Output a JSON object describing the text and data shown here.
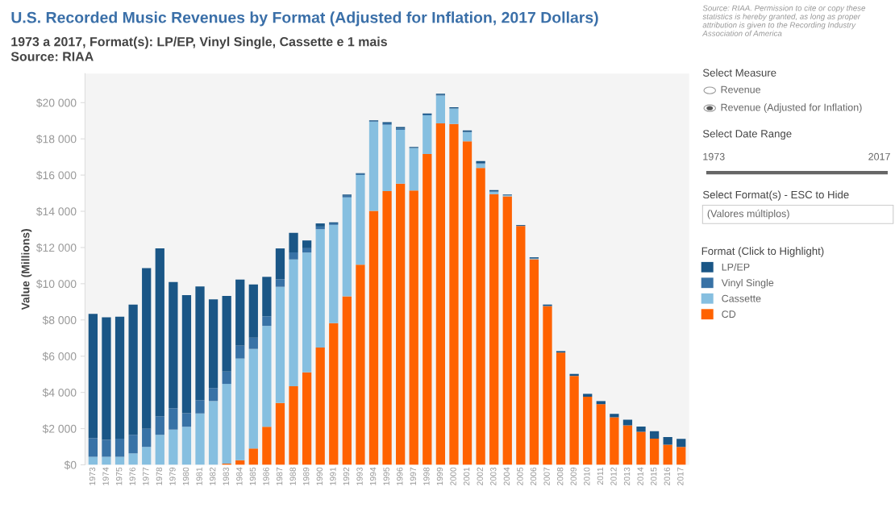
{
  "chart_data": {
    "type": "bar",
    "stacked": true,
    "title": "U.S. Recorded Music Revenues by Format (Adjusted for Inflation, 2017 Dollars)",
    "subtitle": "1973 a 2017, Format(s): LP/EP, Vinyl Single, Cassette e 1 mais\nSource: RIAA",
    "ylabel": "Value (Millions)",
    "legend_title": "Format (Click to Highlight)",
    "legend": "right",
    "grid": false,
    "categories": [
      "1973",
      "1974",
      "1975",
      "1976",
      "1977",
      "1978",
      "1979",
      "1980",
      "1981",
      "1982",
      "1983",
      "1984",
      "1985",
      "1986",
      "1987",
      "1988",
      "1989",
      "1990",
      "1991",
      "1992",
      "1993",
      "1994",
      "1995",
      "1996",
      "1997",
      "1998",
      "1999",
      "2000",
      "2001",
      "2002",
      "2003",
      "2004",
      "2005",
      "2006",
      "2007",
      "2008",
      "2009",
      "2010",
      "2011",
      "2012",
      "2013",
      "2014",
      "2015",
      "2016",
      "2017"
    ],
    "series": [
      {
        "name": "CD",
        "color": "#ff6200",
        "values": [
          0,
          0,
          0,
          0,
          0,
          0,
          0,
          0,
          0,
          0,
          60,
          250,
          900,
          2100,
          3420,
          4340,
          5110,
          6480,
          7820,
          9300,
          11050,
          14020,
          15110,
          15530,
          15150,
          17160,
          18860,
          18820,
          17860,
          16390,
          14950,
          14820,
          13190,
          11350,
          8760,
          6200,
          4910,
          3760,
          3350,
          2620,
          2180,
          1820,
          1440,
          1110,
          990
        ]
      },
      {
        "name": "Cassette",
        "color": "#86bfe0",
        "values": [
          440,
          440,
          440,
          630,
          990,
          1660,
          1950,
          2100,
          2840,
          3520,
          4410,
          5620,
          5500,
          5570,
          6410,
          7000,
          6610,
          6530,
          5430,
          5470,
          4950,
          4920,
          3670,
          2970,
          2350,
          2140,
          1530,
          860,
          510,
          230,
          130,
          60,
          null,
          40,
          0,
          0,
          0,
          0,
          0,
          0,
          0,
          0,
          0,
          0,
          0
        ]
      },
      {
        "name": "Vinyl Single",
        "color": "#3872a6",
        "values": [
          1040,
          940,
          1000,
          1030,
          1000,
          1020,
          1180,
          750,
          730,
          720,
          680,
          710,
          620,
          530,
          420,
          390,
          240,
          150,
          80,
          90,
          60,
          40,
          80,
          70,
          null,
          50,
          40,
          null,
          20,
          40,
          30,
          null,
          10,
          0,
          20,
          null,
          0,
          0,
          0,
          0,
          0,
          0,
          0,
          0,
          0
        ]
      },
      {
        "name": "LP/EP",
        "color": "#1a5686",
        "values": [
          6850,
          6770,
          6740,
          7190,
          8870,
          9270,
          6960,
          6520,
          6280,
          4900,
          4180,
          3650,
          2940,
          2180,
          1700,
          1080,
          430,
          170,
          60,
          60,
          50,
          40,
          60,
          80,
          50,
          50,
          60,
          70,
          70,
          110,
          60,
          50,
          40,
          70,
          70,
          80,
          110,
          160,
          170,
          190,
          310,
          290,
          420,
          420,
          440
        ]
      }
    ],
    "ylim": [
      0,
      21600
    ],
    "yticks": [
      {
        "value": 0,
        "label": "$0"
      },
      {
        "value": 2000,
        "label": "$2 000"
      },
      {
        "value": 4000,
        "label": "$4 000"
      },
      {
        "value": 6000,
        "label": "$6 000"
      },
      {
        "value": 8000,
        "label": "$8 000"
      },
      {
        "value": 10000,
        "label": "$10 000"
      },
      {
        "value": 12000,
        "label": "$12 000"
      },
      {
        "value": 14000,
        "label": "$14 000"
      },
      {
        "value": 16000,
        "label": "$16 000"
      },
      {
        "value": 18000,
        "label": "$18 000"
      },
      {
        "value": 20000,
        "label": "$20 000"
      }
    ],
    "annotations": [
      "Source: RIAA. Permission to cite or copy these statistics is hereby granted, as long as proper attribution is given to the Recording Industry Association of America",
      "Select Measure",
      "Revenue",
      "Revenue (Adjusted for Inflation)",
      "Select Date Range",
      "1973",
      "2017",
      "Select Format(s) - ESC to Hide",
      "(Valores múltiplos)"
    ]
  }
}
